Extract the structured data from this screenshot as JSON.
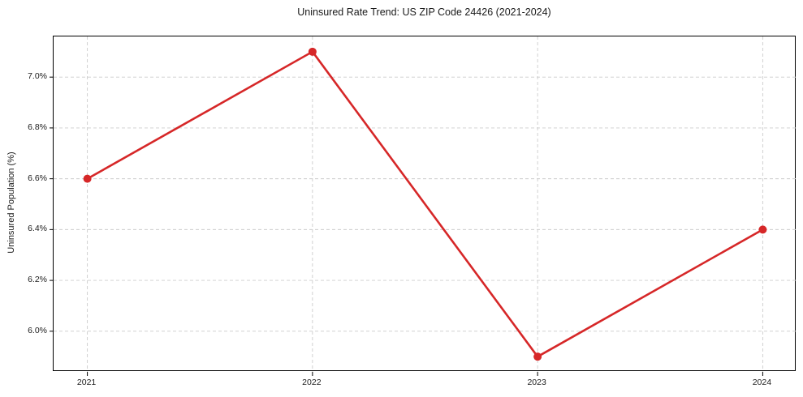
{
  "chart_data": {
    "type": "line",
    "title": "Uninsured Rate Trend: US ZIP Code 24426 (2021-2024)",
    "xlabel": "",
    "ylabel": "Uninsured Population (%)",
    "categories": [
      "2021",
      "2022",
      "2023",
      "2024"
    ],
    "series": [
      {
        "name": "Uninsured rate",
        "values": [
          6.6,
          7.1,
          5.9,
          6.4
        ]
      }
    ],
    "yticks": [
      6.0,
      6.2,
      6.4,
      6.6,
      6.8,
      7.0
    ],
    "ytick_labels": [
      "6.0%",
      "6.2%",
      "6.4%",
      "6.6%",
      "6.8%",
      "7.0%"
    ],
    "ylim": [
      5.84,
      7.16
    ],
    "xlim": [
      -0.15,
      3.15
    ],
    "grid": true,
    "legend_position": "none",
    "colors": {
      "line": "#d62728",
      "marker": "#d62728",
      "grid": "#cccccc",
      "spine": "#000000",
      "text": "#1a1a1a"
    },
    "marker_style": "circle",
    "line_width": 2.6,
    "marker_radius": 5
  }
}
